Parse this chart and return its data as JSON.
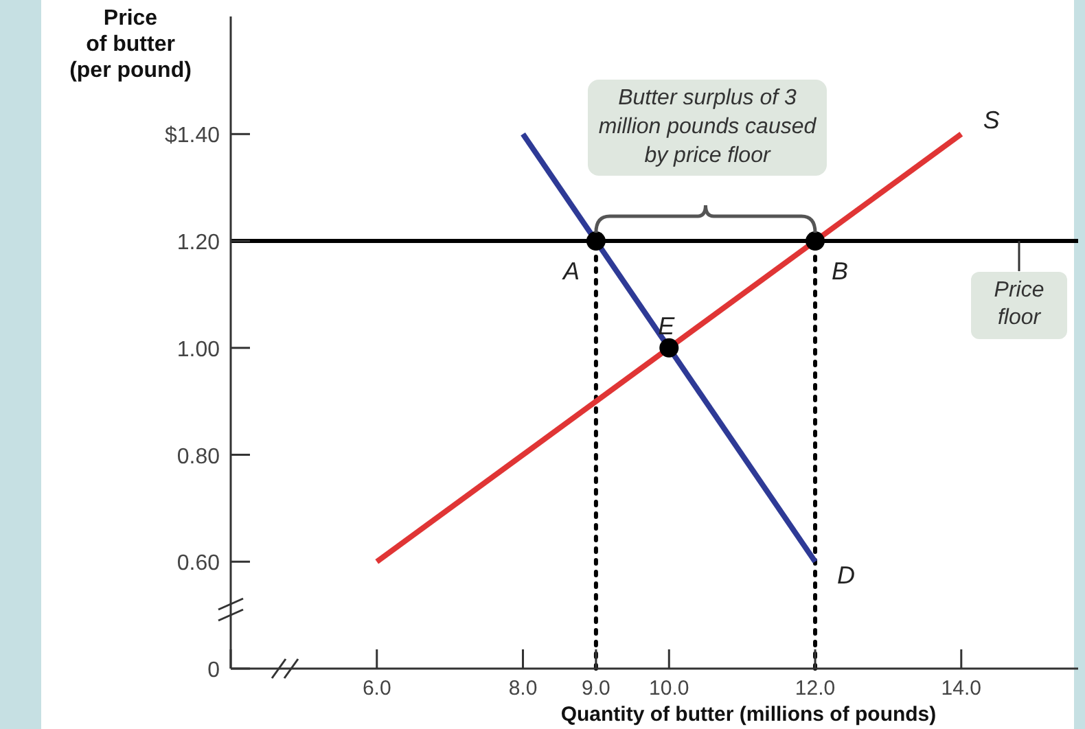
{
  "chart_data": {
    "type": "line",
    "ylabel": "Price\nof butter\n(per pound)",
    "xlabel": "Quantity of butter (millions of pounds)",
    "xlim": [
      4,
      15.6
    ],
    "xticks": [
      {
        "value": 4,
        "label": null
      },
      {
        "value": 6,
        "label": "6.0"
      },
      {
        "value": 8,
        "label": "8.0"
      },
      {
        "value": 9,
        "label": "9.0"
      },
      {
        "value": 10,
        "label": "10.0"
      },
      {
        "value": 12,
        "label": "12.0"
      },
      {
        "value": 14,
        "label": "14.0"
      }
    ],
    "ylim": [
      0.4,
      1.62
    ],
    "yticks": [
      {
        "value": 0.4,
        "label": "0"
      },
      {
        "value": 0.6,
        "label": "0.60"
      },
      {
        "value": 0.8,
        "label": "0.80"
      },
      {
        "value": 1.0,
        "label": "1.00"
      },
      {
        "value": 1.2,
        "label": "1.20"
      },
      {
        "value": 1.4,
        "label": "$1.40"
      }
    ],
    "series": [
      {
        "name": "S",
        "color": "#e03535",
        "x": [
          6,
          14
        ],
        "values": [
          0.6,
          1.4
        ]
      },
      {
        "name": "D",
        "color": "#2e3a96",
        "x": [
          8,
          12
        ],
        "values": [
          1.4,
          0.6
        ]
      },
      {
        "type": "scatter",
        "color": "#000000",
        "marker": "circle",
        "x": [
          9,
          12,
          10
        ],
        "values": [
          1.2,
          1.2,
          1.0
        ]
      }
    ],
    "ref_lines": [
      {
        "axis": "y",
        "value": 1.2,
        "label": "Price floor",
        "color": "#000000"
      },
      {
        "axis": "x",
        "value": 9,
        "color": "#000000",
        "line_style": "dotted"
      },
      {
        "axis": "x",
        "value": 12,
        "color": "#000000",
        "line_style": "dotted"
      }
    ],
    "annotations": [
      "Butter surplus of 3 million pounds caused by price floor",
      {
        "text": "A",
        "x": 9,
        "y": 1.2
      },
      {
        "text": "B",
        "x": 12,
        "y": 1.2
      },
      {
        "text": "E",
        "x": 10,
        "y": 1.0
      }
    ],
    "grid": false
  }
}
